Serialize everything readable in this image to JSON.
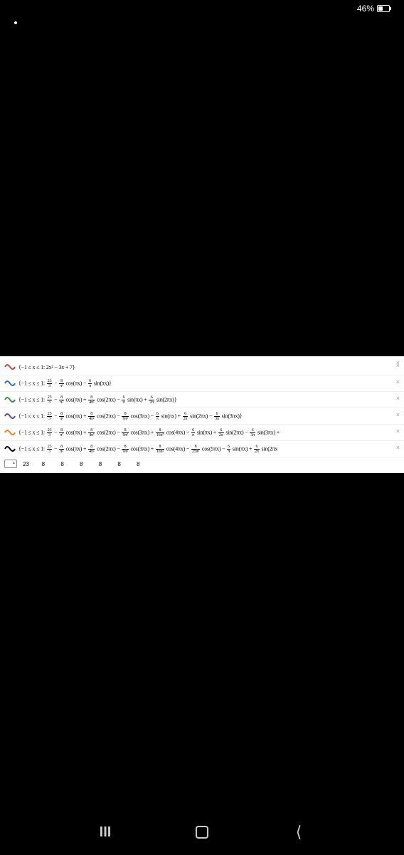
{
  "status": {
    "battery_text": "46%",
    "battery_level": 46
  },
  "icon_colors": {
    "red": "#c74440",
    "blue": "#2d70b3",
    "green": "#388c46",
    "purple": "#6042a6",
    "orange": "#fa7e19"
  },
  "equations": [
    {
      "color": "#c74440",
      "text": "{−1 ≤ x ≤ 1: 2x² − 3x + 7}",
      "has_close": true
    },
    {
      "color": "#2d70b3",
      "text": "{−1 ≤ x ≤ 1: 23/3 − 8/π² cos(πx) − 6/π sin(πx)}",
      "has_close": true
    },
    {
      "color": "#388c46",
      "text": "{−1 ≤ x ≤ 1: 23/3 − 8/π² cos(πx) + 8/4π² cos(2πx) − 6/π sin(πx) + 6/2π sin(2πx)}",
      "has_close": true
    },
    {
      "color": "#6042a6",
      "text": "{−1 ≤ x ≤ 1: 23/3 − 8/π² cos(πx) + 8/4π² cos(2πx) − 8/9π² cos(3πx) − 6/π sin(πx) + 6/2π sin(2πx) − 6/3π sin(3πx)}",
      "has_close": true
    },
    {
      "color": "#fa7e19",
      "text": "{−1 ≤ x ≤ 1: 23/3 − 8/π² cos(πx) + 8/4π² cos(2πx) − 8/9π² cos(3πx) + 8/16π² cos(4πx) − 6/π sin(πx) + 6/2π sin(2πx) − 6/3π sin(3πx) +",
      "has_close": true
    },
    {
      "color": "#000000",
      "text": "{−1 ≤ x ≤ 1: 23/3 − 8/π² cos(πx) + 8/4π² cos(2πx) − 8/9π² cos(3πx) + 8/16π² cos(4πx) − 8/25π² cos(5πx) − 6/π sin(πx) + 6/2π sin(2πx",
      "has_close": true
    }
  ],
  "bottom_row": "23        8          8          8          8          8          8",
  "panel_bg": "#ffffff",
  "body_bg": "#000000"
}
